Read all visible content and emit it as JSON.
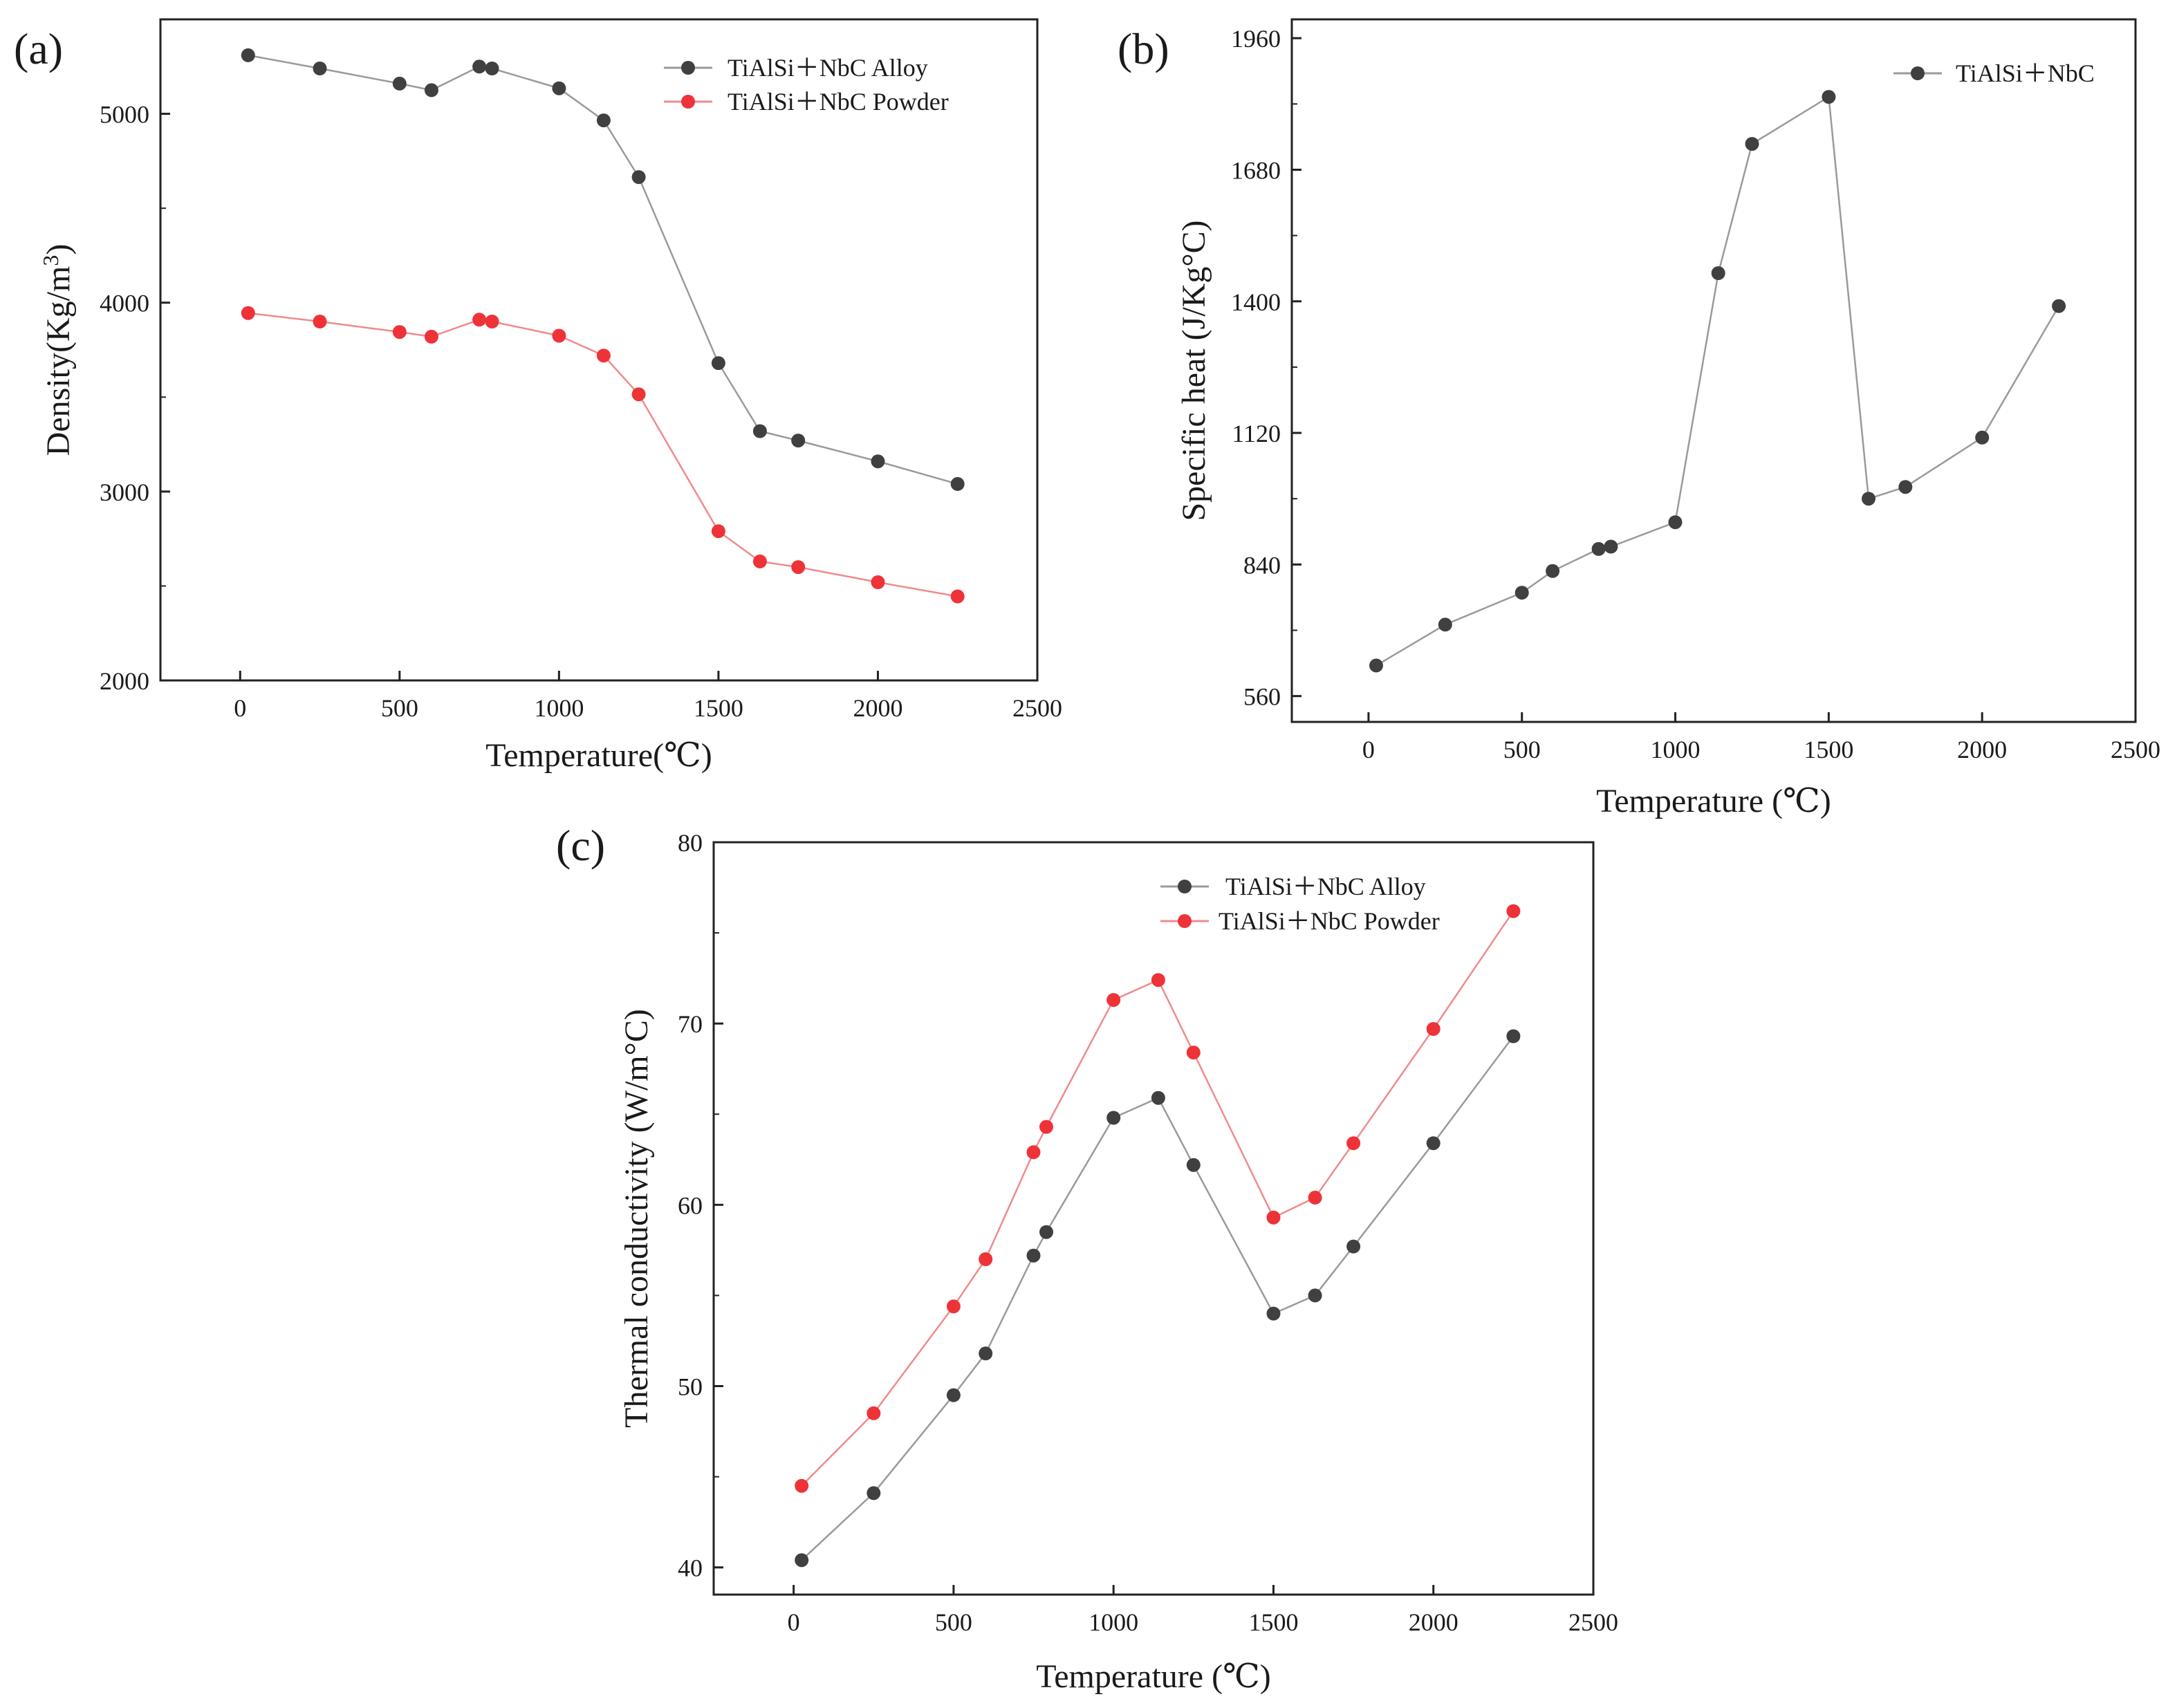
{
  "chart_data": [
    {
      "panel": "(a)",
      "type": "line",
      "title": "",
      "xlabel": "Temperature(℃)",
      "ylabel": "Density(Kg/m³)",
      "xlim": [
        -250,
        2500
      ],
      "ylim": [
        2000,
        5500
      ],
      "xticks": [
        0,
        500,
        1000,
        1500,
        2000,
        2500
      ],
      "yticks": [
        2000,
        3000,
        4000,
        5000
      ],
      "x": [
        25,
        250,
        500,
        600,
        750,
        790,
        1000,
        1140,
        1250,
        1500,
        1630,
        1750,
        2000,
        2250
      ],
      "series": [
        {
          "name": "TiAlSi＋NbC Alloy",
          "color": "#404040",
          "line_color": "#9a9a9a",
          "values": [
            5310,
            5240,
            5160,
            5125,
            5250,
            5240,
            5135,
            4965,
            4665,
            3680,
            3320,
            3270,
            3160,
            3040
          ]
        },
        {
          "name": "TiAlSi＋NbC Powder",
          "color": "#ee3338",
          "line_color": "#f08a8c",
          "values": [
            3945,
            3900,
            3845,
            3820,
            3910,
            3900,
            3825,
            3720,
            3515,
            2790,
            2630,
            2600,
            2520,
            2445
          ]
        }
      ],
      "legend_position": "top-right"
    },
    {
      "panel": "(b)",
      "type": "line",
      "title": "",
      "xlabel": "Temperature (℃)",
      "ylabel": "Specific heat (J/Kg°C)",
      "xlim": [
        -250,
        2500
      ],
      "ylim": [
        505,
        2000
      ],
      "xticks": [
        0,
        500,
        1000,
        1500,
        2000,
        2500
      ],
      "yticks": [
        560,
        840,
        1120,
        1400,
        1680,
        1960
      ],
      "x": [
        25,
        250,
        500,
        600,
        750,
        790,
        1000,
        1140,
        1250,
        1500,
        1630,
        1750,
        2000,
        2250
      ],
      "series": [
        {
          "name": "TiAlSi＋NbC",
          "color": "#404040",
          "line_color": "#9a9a9a",
          "values": [
            625,
            712,
            780,
            826,
            873,
            878,
            930,
            1460,
            1735,
            1835,
            980,
            1005,
            1110,
            1390
          ]
        }
      ],
      "legend_position": "top-right"
    },
    {
      "panel": "(c)",
      "type": "line",
      "title": "",
      "xlabel": "Temperature (℃)",
      "ylabel": "Thermal conductivity (W/m°C)",
      "xlim": [
        -250,
        2500
      ],
      "ylim": [
        38.5,
        80
      ],
      "xticks": [
        0,
        500,
        1000,
        1500,
        2000,
        2500
      ],
      "yticks": [
        40,
        50,
        60,
        70,
        80
      ],
      "x": [
        25,
        250,
        500,
        600,
        750,
        790,
        1000,
        1140,
        1250,
        1500,
        1630,
        1750,
        2000,
        2250
      ],
      "series": [
        {
          "name": "TiAlSi＋NbC Alloy",
          "color": "#404040",
          "line_color": "#9a9a9a",
          "values": [
            40.4,
            44.1,
            49.5,
            51.8,
            57.2,
            58.5,
            64.8,
            65.9,
            62.2,
            54.0,
            55.0,
            57.7,
            63.4,
            69.3
          ]
        },
        {
          "name": "TiAlSi＋NbC Powder",
          "color": "#ee3338",
          "line_color": "#f08a8c",
          "values": [
            44.5,
            48.5,
            54.4,
            57.0,
            62.9,
            64.3,
            71.3,
            72.4,
            68.4,
            59.3,
            60.4,
            63.4,
            69.7,
            76.2
          ]
        }
      ],
      "legend_position": "top-right"
    }
  ]
}
